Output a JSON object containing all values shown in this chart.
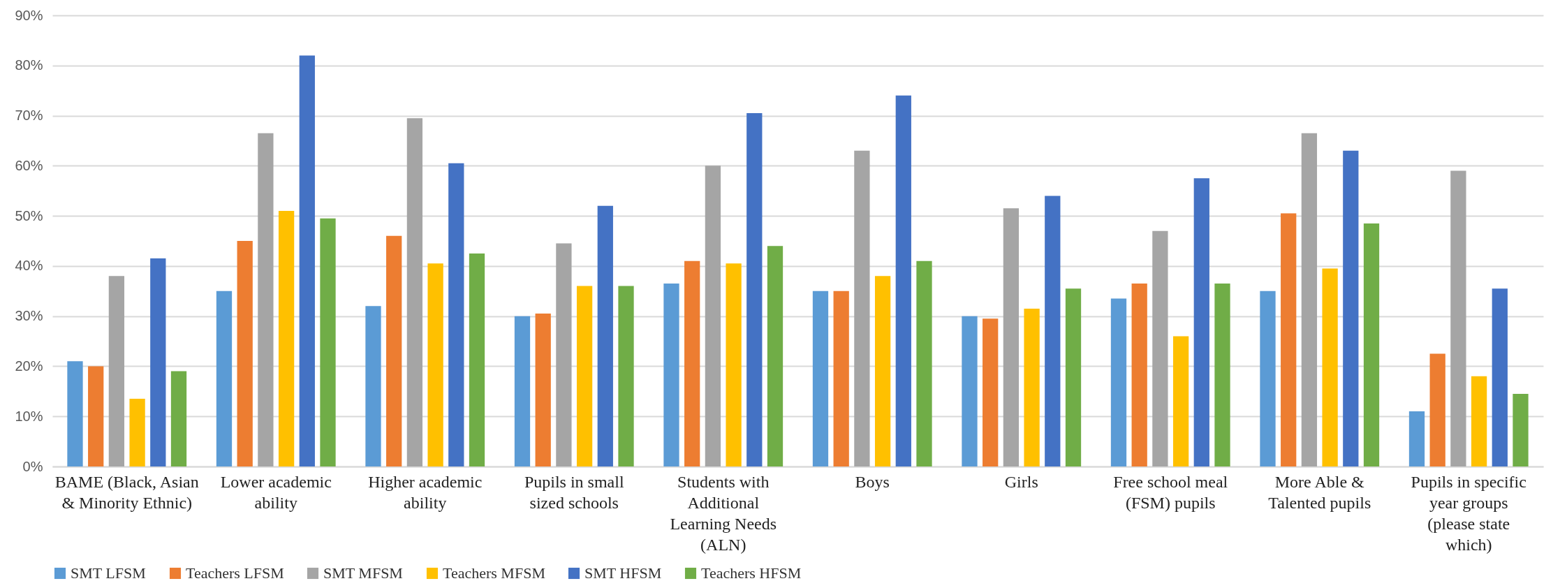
{
  "chart_data": {
    "type": "bar",
    "categories": [
      "BAME (Black, Asian & Minority Ethnic)",
      "Lower academic ability",
      "Higher academic ability",
      "Pupils in small sized schools",
      "Students with Additional Learning Needs (ALN)",
      "Boys",
      "Girls",
      "Free school meal (FSM) pupils",
      "More Able & Talented pupils",
      "Pupils in specific year groups (please state which)"
    ],
    "series": [
      {
        "name": "SMT LFSM",
        "color": "#5b9bd5",
        "values": [
          21,
          35,
          32,
          30,
          36.5,
          35,
          30,
          33.5,
          35,
          11
        ]
      },
      {
        "name": "Teachers LFSM",
        "color": "#ed7d31",
        "values": [
          20,
          45,
          46,
          30.5,
          41,
          35,
          29.5,
          36.5,
          50.5,
          22.5
        ]
      },
      {
        "name": "SMT MFSM",
        "color": "#a5a5a5",
        "values": [
          38,
          66.5,
          69.5,
          44.5,
          60,
          63,
          51.5,
          47,
          66.5,
          59
        ]
      },
      {
        "name": "Teachers MFSM",
        "color": "#ffc000",
        "values": [
          13.5,
          51,
          40.5,
          36,
          40.5,
          38,
          31.5,
          26,
          39.5,
          18
        ]
      },
      {
        "name": "SMT HFSM",
        "color": "#4472c4",
        "values": [
          41.5,
          82,
          60.5,
          52,
          70.5,
          74,
          54,
          57.5,
          63,
          35.5
        ]
      },
      {
        "name": "Teachers HFSM",
        "color": "#70ad47",
        "values": [
          19,
          49.5,
          42.5,
          36,
          44,
          41,
          35.5,
          36.5,
          48.5,
          14.5
        ]
      }
    ],
    "ylim": [
      0,
      90
    ],
    "yticks": [
      {
        "value": 0,
        "label": "0%"
      },
      {
        "value": 10,
        "label": "10%"
      },
      {
        "value": 20,
        "label": "20%"
      },
      {
        "value": 30,
        "label": "30%"
      },
      {
        "value": 40,
        "label": "40%"
      },
      {
        "value": 50,
        "label": "50%"
      },
      {
        "value": 60,
        "label": "60%"
      },
      {
        "value": 70,
        "label": "70%"
      },
      {
        "value": 80,
        "label": "80%"
      },
      {
        "value": 90,
        "label": "90%"
      }
    ],
    "grid": "y",
    "legend": "bottom"
  }
}
